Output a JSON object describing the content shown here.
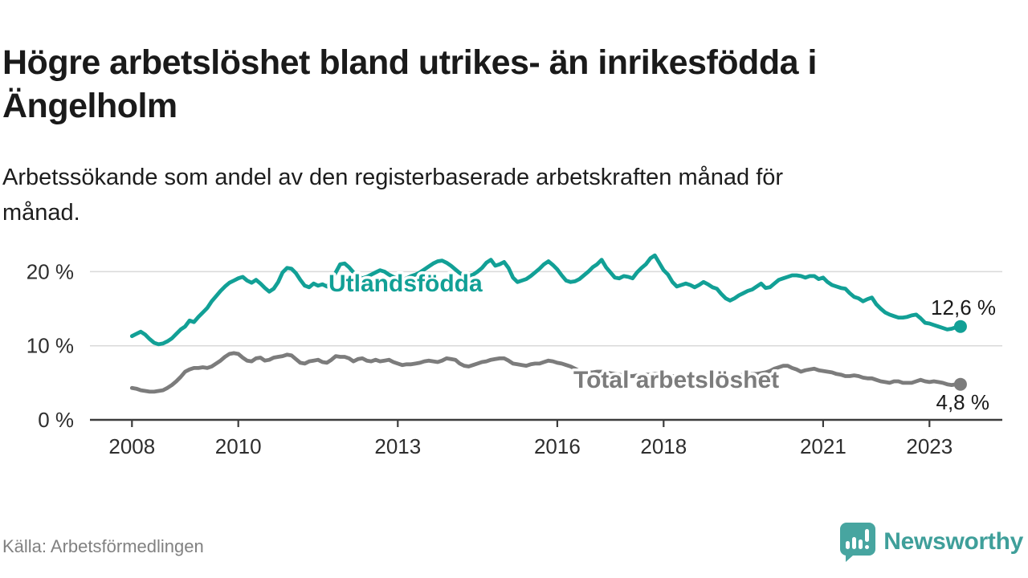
{
  "title_lines": [
    "Högre arbetslöshet bland utrikes- än inrikesfödda i",
    "Ängelholm"
  ],
  "subtitle_lines": [
    "Arbetssökande som andel av den registerbaserade arbetskraften månad för",
    "månad."
  ],
  "source": "Källa: Arbetsförmedlingen",
  "brand": {
    "name": "Newsworthy",
    "icon": "newsworthy-speech-bubble-bars-icon",
    "color": "#3f9f9a"
  },
  "colors": {
    "accent_teal": "#12A096",
    "neutral_gray": "#7C7C7C",
    "gridline": "#D9D9D9",
    "axis": "#3C3C3C",
    "text_dark": "#1A1A1A"
  },
  "chart_data": {
    "type": "line",
    "title": "Högre arbetslöshet bland utrikes- än inrikesfödda i Ängelholm",
    "subtitle": "Arbetssökande som andel av den registerbaserade arbetskraften månad för månad.",
    "frequency": "monthly",
    "x_start": "2008-01",
    "x_end": "2023-08",
    "grid": "horizontal-only",
    "x_axis_ticks": [
      {
        "label": "2008",
        "year": 2008
      },
      {
        "label": "2010",
        "year": 2010
      },
      {
        "label": "2013",
        "year": 2013
      },
      {
        "label": "2016",
        "year": 2016
      },
      {
        "label": "2018",
        "year": 2018
      },
      {
        "label": "2021",
        "year": 2021
      },
      {
        "label": "2023",
        "year": 2023
      }
    ],
    "y_axis_ticks": [
      {
        "label": "0 %",
        "value": 0
      },
      {
        "label": "10 %",
        "value": 10
      },
      {
        "label": "20 %",
        "value": 20
      }
    ],
    "ylim": [
      0,
      22.6
    ],
    "series": [
      {
        "name": "Utlandsfödda",
        "color": "#12A096",
        "end_value": 12.6,
        "end_label": "12,6 %",
        "values": [
          11.3,
          11.6,
          11.9,
          11.5,
          10.9,
          10.4,
          10.2,
          10.3,
          10.6,
          11.0,
          11.6,
          12.2,
          12.6,
          13.4,
          13.2,
          13.9,
          14.5,
          15.1,
          16.0,
          16.7,
          17.4,
          18.0,
          18.5,
          18.8,
          19.1,
          19.3,
          18.8,
          18.5,
          18.9,
          18.4,
          17.8,
          17.3,
          17.7,
          18.6,
          19.9,
          20.5,
          20.4,
          19.8,
          18.9,
          18.1,
          17.9,
          18.4,
          18.1,
          18.3,
          18.0,
          18.7,
          19.9,
          21.0,
          21.1,
          20.6,
          19.9,
          19.4,
          19.1,
          19.3,
          19.6,
          19.9,
          20.2,
          20.0,
          19.6,
          19.3,
          19.1,
          18.9,
          19.1,
          19.4,
          19.6,
          19.9,
          20.3,
          20.7,
          21.1,
          21.4,
          21.5,
          21.2,
          20.8,
          20.3,
          19.8,
          19.5,
          19.4,
          19.6,
          20.0,
          20.5,
          21.2,
          21.6,
          20.8,
          21.0,
          21.3,
          20.5,
          19.2,
          18.6,
          18.8,
          19.0,
          19.4,
          19.9,
          20.4,
          21.0,
          21.4,
          20.9,
          20.3,
          19.5,
          18.8,
          18.6,
          18.7,
          19.0,
          19.5,
          20.0,
          20.6,
          21.0,
          21.6,
          20.6,
          19.9,
          19.2,
          19.1,
          19.4,
          19.3,
          19.1,
          19.9,
          20.5,
          21.0,
          21.8,
          22.2,
          21.2,
          20.2,
          19.6,
          18.6,
          18.0,
          18.2,
          18.4,
          18.2,
          17.9,
          18.2,
          18.6,
          18.3,
          17.9,
          17.7,
          17.0,
          16.4,
          16.1,
          16.4,
          16.8,
          17.1,
          17.4,
          17.6,
          18.0,
          18.4,
          17.8,
          17.9,
          18.4,
          18.9,
          19.1,
          19.3,
          19.5,
          19.5,
          19.4,
          19.2,
          19.4,
          19.4,
          19.0,
          19.2,
          18.6,
          18.2,
          18.0,
          17.8,
          17.7,
          17.1,
          16.6,
          16.4,
          16.0,
          16.3,
          16.5,
          15.6,
          15.0,
          14.5,
          14.2,
          14.0,
          13.8,
          13.8,
          13.9,
          14.1,
          14.2,
          13.7,
          13.1,
          13.0,
          12.8,
          12.6,
          12.4,
          12.2,
          12.3,
          12.5,
          12.6
        ]
      },
      {
        "name": "Total arbetslöshet",
        "color": "#7C7C7C",
        "end_value": 4.8,
        "end_label": "4,8 %",
        "values": [
          4.3,
          4.2,
          4.0,
          3.9,
          3.8,
          3.8,
          3.9,
          4.0,
          4.3,
          4.7,
          5.2,
          5.8,
          6.5,
          6.8,
          7.0,
          7.0,
          7.1,
          7.0,
          7.2,
          7.6,
          8.0,
          8.5,
          8.9,
          9.0,
          8.9,
          8.4,
          8.0,
          7.9,
          8.3,
          8.4,
          8.0,
          8.1,
          8.4,
          8.5,
          8.6,
          8.8,
          8.7,
          8.2,
          7.7,
          7.6,
          7.9,
          8.0,
          8.1,
          7.8,
          7.7,
          8.1,
          8.6,
          8.5,
          8.5,
          8.3,
          7.9,
          8.2,
          8.3,
          8.0,
          7.9,
          8.1,
          7.9,
          8.0,
          8.1,
          7.8,
          7.6,
          7.4,
          7.5,
          7.5,
          7.6,
          7.7,
          7.9,
          8.0,
          7.9,
          7.8,
          8.0,
          8.3,
          8.2,
          8.1,
          7.6,
          7.3,
          7.2,
          7.4,
          7.6,
          7.8,
          7.9,
          8.1,
          8.2,
          8.3,
          8.3,
          8.0,
          7.6,
          7.5,
          7.4,
          7.3,
          7.5,
          7.6,
          7.6,
          7.8,
          8.0,
          7.9,
          7.7,
          7.6,
          7.4,
          7.2,
          6.9,
          6.6,
          6.5,
          6.4,
          6.4,
          6.5,
          6.5,
          6.4,
          6.3,
          6.2,
          6.1,
          6.0,
          5.9,
          5.9,
          6.0,
          6.0,
          6.1,
          6.1,
          6.2,
          6.2,
          6.1,
          6.0,
          5.9,
          5.8,
          5.8,
          5.9,
          6.0,
          5.9,
          5.8,
          5.9,
          6.0,
          6.0,
          6.0,
          5.9,
          5.9,
          5.8,
          5.9,
          6.0,
          6.1,
          6.1,
          6.2,
          6.2,
          6.3,
          6.4,
          6.6,
          6.9,
          7.1,
          7.3,
          7.3,
          7.0,
          6.8,
          6.5,
          6.7,
          6.8,
          6.9,
          6.7,
          6.6,
          6.5,
          6.4,
          6.2,
          6.1,
          5.9,
          5.9,
          6.0,
          5.9,
          5.7,
          5.6,
          5.6,
          5.4,
          5.2,
          5.1,
          5.0,
          5.2,
          5.2,
          5.0,
          5.0,
          5.0,
          5.2,
          5.4,
          5.2,
          5.1,
          5.2,
          5.1,
          5.0,
          4.8,
          4.7,
          4.8,
          4.8
        ]
      }
    ]
  }
}
